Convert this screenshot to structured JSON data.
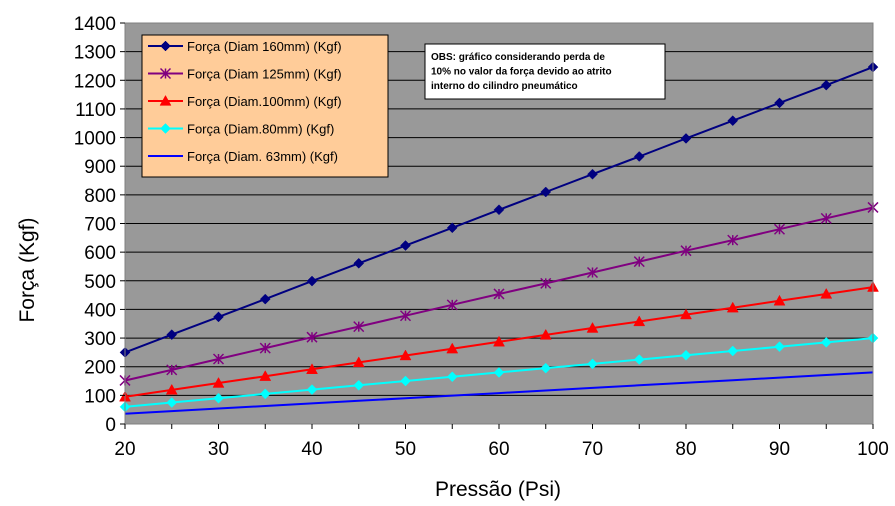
{
  "chart_data": {
    "type": "line",
    "title": "",
    "xlabel": "Pressão (Psi)",
    "ylabel": "Força (Kgf)",
    "x": [
      20,
      25,
      30,
      35,
      40,
      45,
      50,
      55,
      60,
      65,
      70,
      75,
      80,
      85,
      90,
      95,
      100
    ],
    "xlim": [
      20,
      100
    ],
    "ylim": [
      0,
      1400
    ],
    "xticks": [
      "20",
      "30",
      "40",
      "50",
      "60",
      "70",
      "80",
      "90",
      "100"
    ],
    "yticks": [
      "0",
      "100",
      "200",
      "300",
      "400",
      "500",
      "600",
      "700",
      "800",
      "900",
      "1000",
      "1100",
      "1200",
      "1300",
      "1400"
    ],
    "grid": "horizontal",
    "legend_position": "top-left",
    "series": [
      {
        "name": "Força (Diam 160mm) (Kgf)",
        "color": "#000080",
        "marker": "diamond",
        "values": [
          250,
          312,
          374,
          436,
          499,
          561,
          623,
          685,
          748,
          810,
          872,
          934,
          997,
          1059,
          1121,
          1183,
          1246
        ]
      },
      {
        "name": "Força (Diam 125mm) (Kgf)",
        "color": "#800080",
        "marker": "asterisk",
        "values": [
          152,
          189,
          227,
          265,
          303,
          340,
          378,
          416,
          454,
          491,
          529,
          567,
          605,
          642,
          680,
          718,
          756
        ]
      },
      {
        "name": "Força (Diam.100mm) (Kgf)",
        "color": "#ff0000",
        "marker": "triangle",
        "values": [
          95,
          119,
          143,
          167,
          191,
          215,
          239,
          263,
          287,
          311,
          335,
          358,
          382,
          406,
          430,
          454,
          478
        ]
      },
      {
        "name": "Força (Diam.80mm) (Kgf)",
        "color": "#00ffff",
        "marker": "diamond",
        "values": [
          60,
          75,
          90,
          105,
          120,
          135,
          150,
          165,
          180,
          195,
          210,
          225,
          240,
          255,
          270,
          285,
          300
        ]
      },
      {
        "name": "Força (Diam. 63mm) (Kgf)",
        "color": "#0000ff",
        "marker": "none",
        "values": [
          36,
          45,
          54,
          63,
          72,
          81,
          90,
          99,
          108,
          117,
          126,
          135,
          144,
          153,
          162,
          171,
          180
        ]
      }
    ],
    "annotation": "OBS: gráfico considerando perda de 10% no valor da força devido ao atrito interno do cilindro pneumático",
    "annotation_lines": [
      "OBS: gráfico considerando perda de",
      "10% no valor da força devido ao atrito",
      "interno do cilindro pneumático"
    ],
    "colors": {
      "plot_background": "#999999",
      "legend_background": "#ffcc99",
      "gridline": "#000000"
    }
  }
}
